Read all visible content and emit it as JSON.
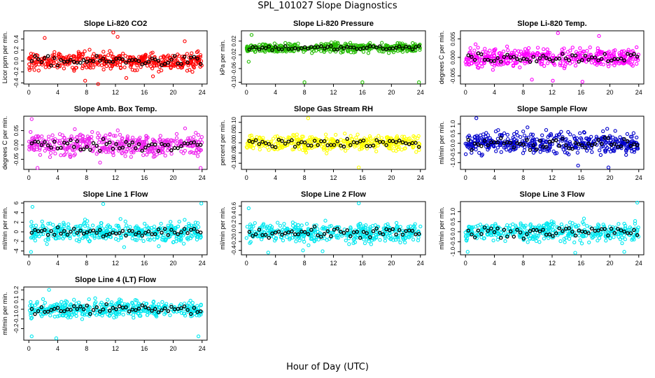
{
  "title": "SPL_101027  Slope Diagnostics",
  "xlabel": "Hour of Day (UTC)",
  "chart_data": [
    {
      "type": "scatter",
      "title": "Slope Li-820 CO2",
      "ylabel": "Licor ppm per min.",
      "color": "#ff0000",
      "xlim": [
        0,
        24
      ],
      "ylim": [
        -0.42,
        0.55
      ],
      "xticks": [
        0,
        4,
        8,
        12,
        16,
        20,
        24
      ],
      "yticks": [
        -0.4,
        -0.2,
        0.0,
        0.2,
        0.4
      ],
      "tick_labels_y": [
        "-0.4",
        "-0.2",
        "0.0",
        "0.2",
        "0.4"
      ],
      "spread": 0.14,
      "n": 420,
      "outliers": [
        [
          2.2,
          0.42
        ],
        [
          7.8,
          -0.36
        ],
        [
          9.6,
          -0.42
        ],
        [
          11.7,
          0.52
        ],
        [
          12.3,
          0.44
        ],
        [
          13.5,
          -0.31
        ],
        [
          17.2,
          -0.28
        ],
        [
          21.6,
          0.36
        ]
      ]
    },
    {
      "type": "scatter",
      "title": "Slope Li-820 Pressure",
      "ylabel": "kPa per min.",
      "color": "#22bb00",
      "xlim": [
        0,
        24
      ],
      "ylim": [
        -0.105,
        0.05
      ],
      "xticks": [
        0,
        4,
        8,
        12,
        16,
        20,
        24
      ],
      "yticks": [
        -0.1,
        -0.06,
        -0.02,
        0.02
      ],
      "tick_labels_y": [
        "-0.10",
        "-0.06",
        "-0.02",
        "0.02"
      ],
      "spread": 0.012,
      "n": 420,
      "outliers": [
        [
          0.3,
          -0.04
        ],
        [
          0.7,
          0.038
        ],
        [
          8.0,
          -0.1
        ],
        [
          16.0,
          -0.1
        ],
        [
          23.8,
          -0.1
        ]
      ]
    },
    {
      "type": "scatter",
      "title": "Slope Li-820 Temp.",
      "ylabel": "degrees C per min.",
      "color": "#ff00ff",
      "xlim": [
        0,
        24
      ],
      "ylim": [
        -0.0072,
        0.0072
      ],
      "xticks": [
        0,
        4,
        8,
        12,
        16,
        20,
        24
      ],
      "yticks": [
        -0.005,
        0.0,
        0.005
      ],
      "tick_labels_y": [
        "-0.005",
        "0.000",
        "0.005"
      ],
      "spread": 0.0022,
      "n": 420,
      "outliers": [
        [
          9.2,
          -0.006
        ],
        [
          12.8,
          0.0066
        ],
        [
          16.2,
          -0.0066
        ],
        [
          18.5,
          0.0058
        ],
        [
          12.1,
          -0.0063
        ]
      ]
    },
    {
      "type": "scatter",
      "title": "Slope Amb. Box Temp.",
      "ylabel": "degrees C per min.",
      "color": "#ee22ee",
      "xlim": [
        0,
        24
      ],
      "ylim": [
        -0.085,
        0.1
      ],
      "xticks": [
        0,
        4,
        8,
        12,
        16,
        20,
        24
      ],
      "yticks": [
        -0.05,
        0.0,
        0.05
      ],
      "tick_labels_y": [
        "-0.05",
        "0.00",
        "0.05"
      ],
      "spread": 0.035,
      "n": 420,
      "outliers": [
        [
          0.4,
          0.09
        ],
        [
          1.2,
          -0.08
        ],
        [
          23.8,
          -0.08
        ]
      ]
    },
    {
      "type": "scatter",
      "title": "Slope Gas Stream RH",
      "ylabel": "percent per min.",
      "color": "#ffff00",
      "xlim": [
        0,
        24
      ],
      "ylim": [
        -0.13,
        0.13
      ],
      "xticks": [
        0,
        4,
        8,
        12,
        16,
        20,
        24
      ],
      "yticks": [
        -0.1,
        -0.05,
        0.0,
        0.05,
        0.1
      ],
      "tick_labels_y": [
        "-0.10",
        "-0.05",
        "0.00",
        "0.05",
        "0.10"
      ],
      "spread": 0.035,
      "n": 400,
      "outliers": [
        [
          8.5,
          0.12
        ],
        [
          15.5,
          -0.12
        ]
      ]
    },
    {
      "type": "scatter",
      "title": "Slope Sample Flow",
      "ylabel": "ml/min per min.",
      "color": "#0000cc",
      "xlim": [
        0,
        24
      ],
      "ylim": [
        -1.35,
        1.4
      ],
      "xticks": [
        0,
        4,
        8,
        12,
        16,
        20,
        24
      ],
      "yticks": [
        -1.0,
        -0.5,
        0.0,
        0.5,
        1.0
      ],
      "tick_labels_y": [
        "-1.0",
        "-0.5",
        "0.0",
        "0.5",
        "1.0"
      ],
      "spread": 0.5,
      "n": 440,
      "outliers": [
        [
          1.5,
          1.3
        ],
        [
          19.8,
          -1.25
        ],
        [
          15.6,
          -1.15
        ]
      ]
    },
    {
      "type": "scatter",
      "title": "Slope Line 1 Flow",
      "ylabel": "ml/min per min.",
      "color": "#00e8f0",
      "xlim": [
        0,
        24
      ],
      "ylim": [
        -4.8,
        6.3
      ],
      "xticks": [
        0,
        4,
        8,
        12,
        16,
        20,
        24
      ],
      "yticks": [
        -4,
        -2,
        0,
        2,
        4,
        6
      ],
      "tick_labels_y": [
        "-4",
        "-2",
        "0",
        "2",
        "4",
        "6"
      ],
      "spread": 1.8,
      "n": 420,
      "outliers": [
        [
          0.5,
          5.2
        ],
        [
          0.3,
          -4.2
        ],
        [
          10.3,
          5.8
        ],
        [
          13.2,
          -3.2
        ],
        [
          18.0,
          -3.0
        ],
        [
          23.9,
          5.9
        ]
      ]
    },
    {
      "type": "scatter",
      "title": "Slope Line 2 Flow",
      "ylabel": "ml/min per min.",
      "color": "#00e8f0",
      "xlim": [
        0,
        24
      ],
      "ylim": [
        -0.5,
        0.7
      ],
      "xticks": [
        0,
        4,
        8,
        12,
        16,
        20,
        24
      ],
      "yticks": [
        -0.4,
        -0.2,
        0.0,
        0.2,
        0.4,
        0.6
      ],
      "tick_labels_y": [
        "-0.4",
        "-0.2",
        "0.0",
        "0.2",
        "0.4",
        "0.6"
      ],
      "spread": 0.18,
      "n": 420,
      "outliers": [
        [
          0.3,
          0.55
        ],
        [
          15.5,
          0.66
        ],
        [
          3.0,
          -0.45
        ],
        [
          7.8,
          -0.4
        ],
        [
          10.5,
          -0.42
        ]
      ]
    },
    {
      "type": "scatter",
      "title": "Slope Line 3 Flow",
      "ylabel": "ml/min per min.",
      "color": "#00e8f0",
      "xlim": [
        0,
        24
      ],
      "ylim": [
        -1.15,
        1.5
      ],
      "xticks": [
        0,
        4,
        8,
        12,
        16,
        20,
        24
      ],
      "yticks": [
        -1.0,
        -0.5,
        0.0,
        0.5,
        1.0
      ],
      "tick_labels_y": [
        "-1.0",
        "-0.5",
        "0.0",
        "0.5",
        "1.0"
      ],
      "spread": 0.42,
      "n": 420,
      "outliers": [
        [
          23.8,
          1.45
        ],
        [
          0.3,
          -1.0
        ],
        [
          15.2,
          -1.05
        ],
        [
          22.0,
          -1.0
        ]
      ]
    },
    {
      "type": "scatter",
      "title": "Slope Line 4 (LT) Flow",
      "ylabel": "ml/min per min.",
      "color": "#00e8f0",
      "xlim": [
        0,
        24
      ],
      "ylim": [
        -0.32,
        0.23
      ],
      "xticks": [
        0,
        4,
        8,
        12,
        16,
        20,
        24
      ],
      "yticks": [
        -0.2,
        -0.1,
        0.0,
        0.1,
        0.2
      ],
      "tick_labels_y": [
        "-0.2",
        "-0.1",
        "0.0",
        "0.1",
        "0.2"
      ],
      "spread": 0.075,
      "n": 420,
      "outliers": [
        [
          0.4,
          -0.28
        ],
        [
          3.8,
          -0.3
        ],
        [
          23.5,
          -0.28
        ],
        [
          2.8,
          0.2
        ]
      ]
    }
  ]
}
